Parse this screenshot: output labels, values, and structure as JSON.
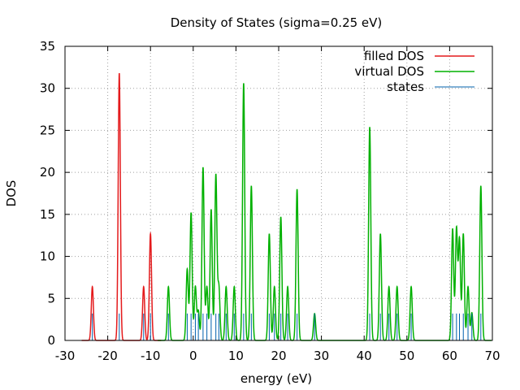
{
  "chart_data": {
    "type": "line",
    "title": "Density of States (sigma=0.25 eV)",
    "xlabel": "energy (eV)",
    "ylabel": "DOS",
    "xlim": [
      -30,
      70
    ],
    "ylim": [
      0,
      35
    ],
    "xticks": [
      -30,
      -20,
      -10,
      0,
      10,
      20,
      30,
      40,
      50,
      60,
      70
    ],
    "yticks": [
      0,
      5,
      10,
      15,
      20,
      25,
      30,
      35
    ],
    "grid": true,
    "legend_position": "top-right",
    "series": [
      {
        "name": "filled DOS",
        "color": "#e41a1c",
        "style": "spectrum",
        "peaks": [
          {
            "e": -23.6,
            "h": 6.4
          },
          {
            "e": -17.3,
            "h": 31.8
          },
          {
            "e": -11.6,
            "h": 6.4
          },
          {
            "e": -10.0,
            "h": 12.7
          }
        ]
      },
      {
        "name": "virtual DOS",
        "color": "#00b000",
        "style": "spectrum",
        "peaks": [
          {
            "e": -5.8,
            "h": 6.4
          },
          {
            "e": -1.4,
            "h": 8.5
          },
          {
            "e": -0.5,
            "h": 15.2
          },
          {
            "e": 0.5,
            "h": 6.4
          },
          {
            "e": 1.2,
            "h": 3.5
          },
          {
            "e": 2.3,
            "h": 20.6
          },
          {
            "e": 3.2,
            "h": 6.4
          },
          {
            "e": 4.2,
            "h": 15.6
          },
          {
            "e": 5.3,
            "h": 19.7
          },
          {
            "e": 6.0,
            "h": 6.4
          },
          {
            "e": 7.7,
            "h": 6.4
          },
          {
            "e": 9.6,
            "h": 6.4
          },
          {
            "e": 11.8,
            "h": 30.6
          },
          {
            "e": 13.6,
            "h": 18.4
          },
          {
            "e": 17.8,
            "h": 12.7
          },
          {
            "e": 19.0,
            "h": 6.4
          },
          {
            "e": 20.5,
            "h": 14.7
          },
          {
            "e": 22.1,
            "h": 6.4
          },
          {
            "e": 24.3,
            "h": 18.0
          },
          {
            "e": 28.4,
            "h": 3.2
          },
          {
            "e": 41.3,
            "h": 25.4
          },
          {
            "e": 43.8,
            "h": 12.7
          },
          {
            "e": 45.8,
            "h": 6.4
          },
          {
            "e": 47.7,
            "h": 6.4
          },
          {
            "e": 51.0,
            "h": 6.4
          },
          {
            "e": 60.7,
            "h": 13.3
          },
          {
            "e": 61.6,
            "h": 13.3
          },
          {
            "e": 62.3,
            "h": 12.0
          },
          {
            "e": 63.2,
            "h": 12.7
          },
          {
            "e": 64.3,
            "h": 6.4
          },
          {
            "e": 65.2,
            "h": 3.3
          },
          {
            "e": 67.3,
            "h": 18.4
          }
        ]
      },
      {
        "name": "states",
        "color": "#0060ad",
        "style": "impulses",
        "impulses": [
          {
            "e": -23.6,
            "h": 3.2
          },
          {
            "e": -17.3,
            "h": 3.2
          },
          {
            "e": -11.6,
            "h": 3.2
          },
          {
            "e": -10.0,
            "h": 3.2
          },
          {
            "e": -5.8,
            "h": 3.2
          },
          {
            "e": -1.4,
            "h": 3.2
          },
          {
            "e": -0.5,
            "h": 3.2
          },
          {
            "e": 0.5,
            "h": 3.2
          },
          {
            "e": 1.2,
            "h": 3.2
          },
          {
            "e": 2.3,
            "h": 3.2
          },
          {
            "e": 3.2,
            "h": 3.2
          },
          {
            "e": 4.2,
            "h": 3.2
          },
          {
            "e": 5.3,
            "h": 3.2
          },
          {
            "e": 6.0,
            "h": 3.2
          },
          {
            "e": 7.7,
            "h": 3.2
          },
          {
            "e": 9.6,
            "h": 3.2
          },
          {
            "e": 11.8,
            "h": 3.2
          },
          {
            "e": 13.6,
            "h": 3.2
          },
          {
            "e": 17.8,
            "h": 3.2
          },
          {
            "e": 19.0,
            "h": 3.2
          },
          {
            "e": 20.5,
            "h": 3.2
          },
          {
            "e": 22.1,
            "h": 3.2
          },
          {
            "e": 24.3,
            "h": 3.2
          },
          {
            "e": 28.4,
            "h": 3.2
          },
          {
            "e": 41.3,
            "h": 3.2
          },
          {
            "e": 43.8,
            "h": 3.2
          },
          {
            "e": 45.8,
            "h": 3.2
          },
          {
            "e": 47.7,
            "h": 3.2
          },
          {
            "e": 51.0,
            "h": 3.2
          },
          {
            "e": 60.7,
            "h": 3.2
          },
          {
            "e": 61.6,
            "h": 3.2
          },
          {
            "e": 62.3,
            "h": 3.2
          },
          {
            "e": 63.2,
            "h": 3.2
          },
          {
            "e": 64.3,
            "h": 3.2
          },
          {
            "e": 65.2,
            "h": 3.2
          },
          {
            "e": 67.3,
            "h": 3.2
          }
        ]
      }
    ]
  }
}
